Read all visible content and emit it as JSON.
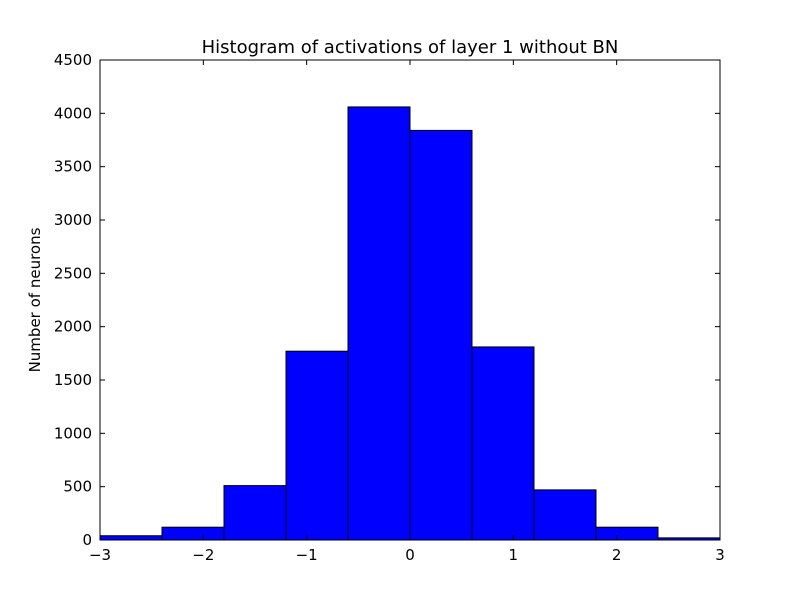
{
  "chart_data": {
    "type": "bar",
    "title": "Histogram of activations of layer 1  without BN",
    "xlabel": "",
    "ylabel": "Number of neurons",
    "xlim": [
      -3,
      3
    ],
    "ylim": [
      0,
      4500
    ],
    "x_ticks": [
      -3,
      -2,
      -1,
      0,
      1,
      2,
      3
    ],
    "x_tick_labels": [
      "−3",
      "−2",
      "−1",
      "0",
      "1",
      "2",
      "3"
    ],
    "y_ticks": [
      0,
      500,
      1000,
      1500,
      2000,
      2500,
      3000,
      3500,
      4000,
      4500
    ],
    "y_tick_labels": [
      "0",
      "500",
      "1000",
      "1500",
      "2000",
      "2500",
      "3000",
      "3500",
      "4000",
      "4500"
    ],
    "bin_edges": [
      -3.0,
      -2.4,
      -1.8,
      -1.2,
      -0.6,
      0.0,
      0.6,
      1.2,
      1.8,
      2.4,
      3.0
    ],
    "values": [
      40,
      120,
      510,
      1770,
      4060,
      3840,
      1810,
      470,
      120,
      20
    ],
    "bar_color": "#0000ff",
    "edge_color": "#000000",
    "grid": false
  }
}
